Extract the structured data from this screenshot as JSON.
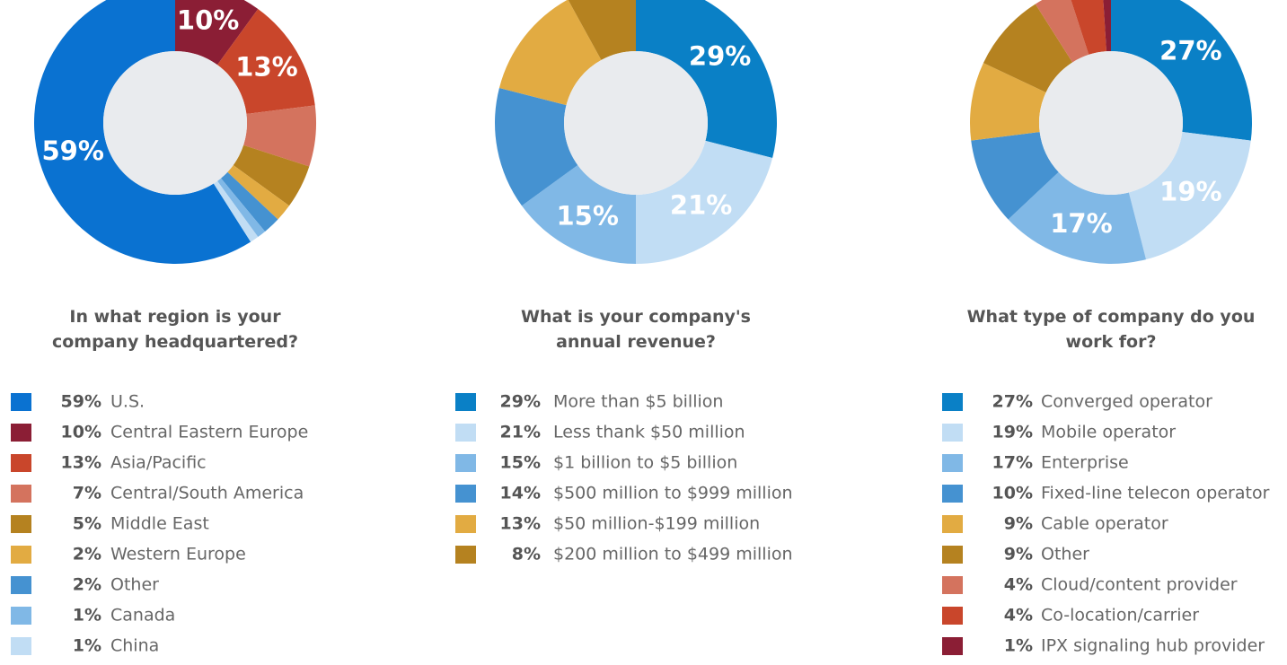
{
  "chart_data": [
    {
      "type": "donut",
      "title": "In what region is your company headquartered?",
      "categories": [
        "U.S.",
        "Central Eastern Europe",
        "Asia/Pacific",
        "Central/South America",
        "Middle East",
        "Western Europe",
        "Other",
        "Canada",
        "China"
      ],
      "values": [
        59,
        10,
        13,
        7,
        5,
        2,
        2,
        1,
        1
      ],
      "value_labels": [
        "59%",
        "10%",
        "13%",
        "7%",
        "5%",
        "2%",
        "2%",
        "1%",
        "1%"
      ],
      "colors": [
        "#0a72d1",
        "#8b1e35",
        "#c9462b",
        "#d4735e",
        "#b58220",
        "#e2ab42",
        "#4592d1",
        "#80b8e6",
        "#c1ddf4"
      ]
    },
    {
      "type": "donut",
      "title": "What is your company's annual revenue?",
      "categories": [
        "More than $5 billion",
        "Less thank $50 million",
        "$1 billion to $5 billion",
        "$500 million to $999 million",
        "$50 million-$199 million",
        "$200 million to $499 million"
      ],
      "values": [
        29,
        21,
        15,
        14,
        13,
        8
      ],
      "value_labels": [
        "29%",
        "21%",
        "15%",
        "14%",
        "13%",
        "8%"
      ],
      "colors": [
        "#0a80c6",
        "#c1ddf4",
        "#80b8e6",
        "#4592d1",
        "#e2ab42",
        "#b58220"
      ]
    },
    {
      "type": "donut",
      "title": "What type of company do you work for?",
      "categories": [
        "Converged operator",
        "Mobile operator",
        "Enterprise",
        "Fixed-line telecon operator",
        "Cable operator",
        "Other",
        "Cloud/content provider",
        "Co-location/carrier",
        "IPX signaling hub provider"
      ],
      "values": [
        27,
        19,
        17,
        10,
        9,
        9,
        4,
        4,
        1
      ],
      "value_labels": [
        "27%",
        "19%",
        "17%",
        "10%",
        "9%",
        "9%",
        "4%",
        "4%",
        "1%"
      ],
      "colors": [
        "#0a80c6",
        "#c1ddf4",
        "#80b8e6",
        "#4592d1",
        "#e2ab42",
        "#b58220",
        "#d4735e",
        "#c9462b",
        "#8b1e35"
      ]
    }
  ]
}
